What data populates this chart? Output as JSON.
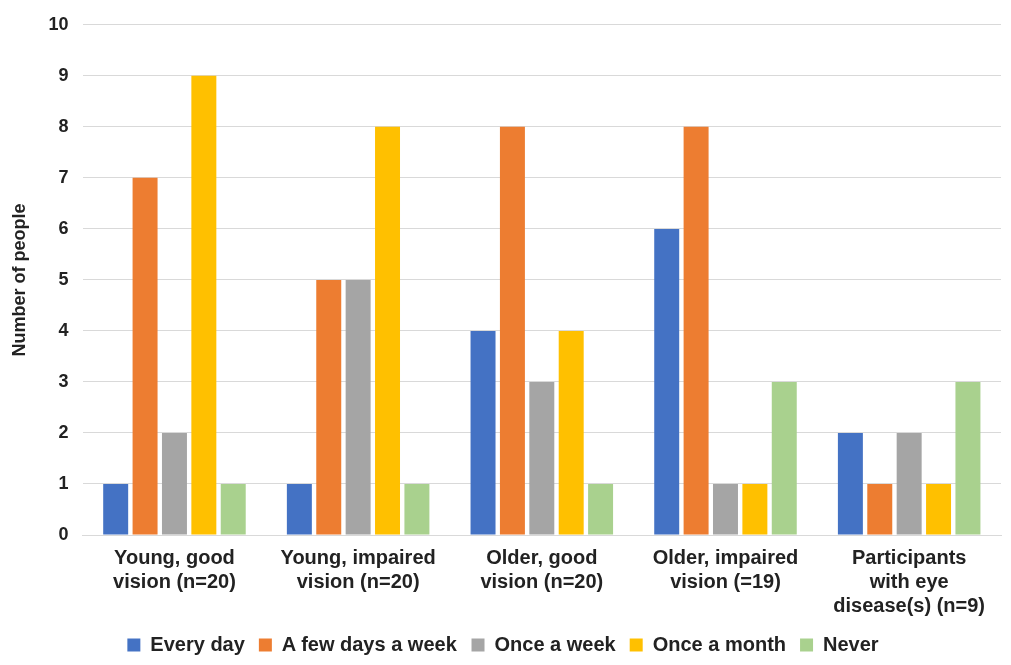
{
  "chart_data": {
    "type": "bar",
    "ylabel": "Number of people",
    "categories": [
      "Young, good vision (n=20)",
      "Young, impaired vision (n=20)",
      "Older, good vision (n=20)",
      "Older, impaired vision (=19)",
      "Participants with eye disease(s) (n=9)"
    ],
    "series": [
      {
        "name": "Every day",
        "color": "#4472c4",
        "values": [
          1,
          1,
          4,
          6,
          2
        ]
      },
      {
        "name": "A few days a week",
        "color": "#ed7d31",
        "values": [
          7,
          5,
          8,
          8,
          1
        ]
      },
      {
        "name": "Once a week",
        "color": "#a5a5a5",
        "values": [
          2,
          5,
          3,
          1,
          2
        ]
      },
      {
        "name": "Once a month",
        "color": "#ffc000",
        "values": [
          9,
          8,
          4,
          1,
          1
        ]
      },
      {
        "name": "Never",
        "color": "#a9d18e",
        "values": [
          1,
          1,
          1,
          3,
          3
        ]
      }
    ],
    "ylim": [
      0,
      10
    ],
    "yticks": [
      0,
      1,
      2,
      3,
      4,
      5,
      6,
      7,
      8,
      9,
      10
    ],
    "grid": "y",
    "legend": "bottom"
  }
}
